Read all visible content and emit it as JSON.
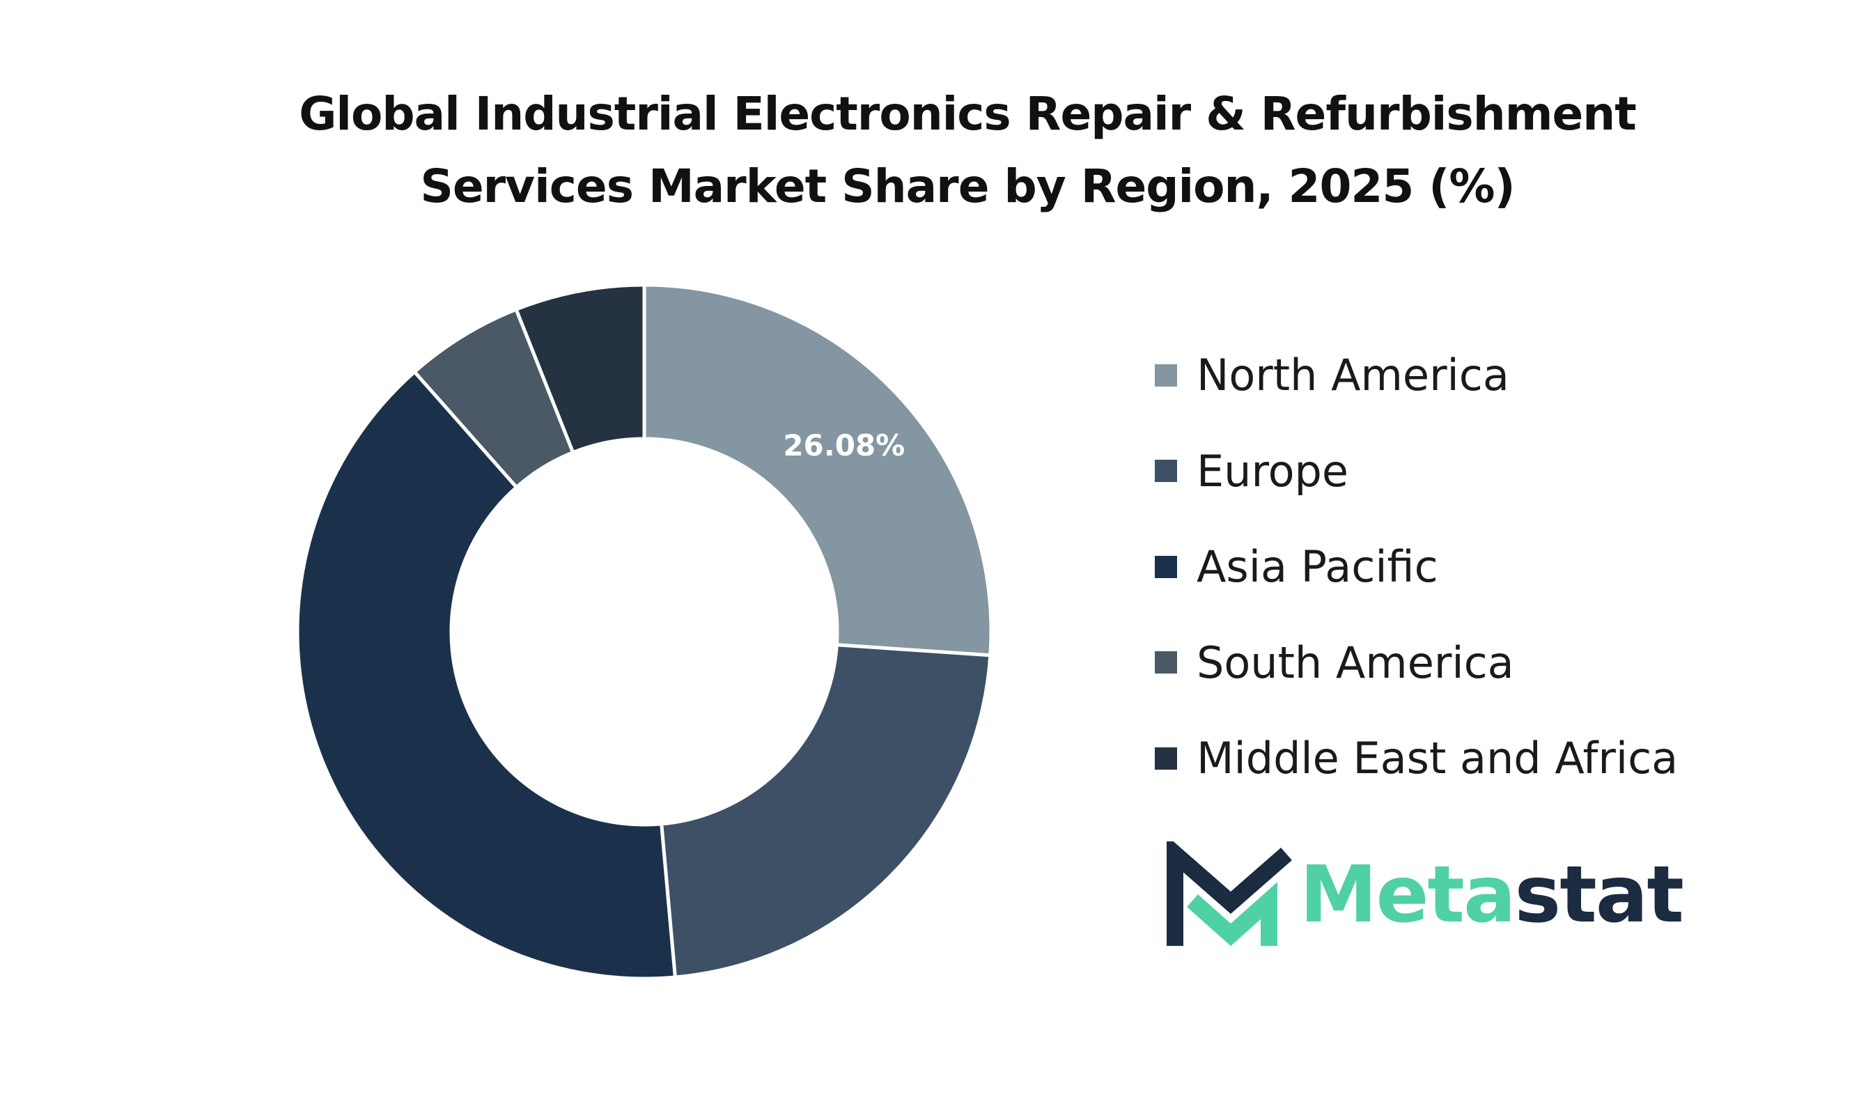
{
  "chart_data": {
    "type": "pie",
    "donut": true,
    "title_lines": [
      "Global Industrial Electronics Repair & Refurbishment",
      "Services Market Share by Region, 2025 (%)"
    ],
    "categories": [
      "North America",
      "Europe",
      "Asia Pacific",
      "South America",
      "Middle East and Africa"
    ],
    "values": [
      26.08,
      22.5,
      39.9,
      5.5,
      6.02
    ],
    "colors": [
      "#8396a1",
      "#3d5066",
      "#1b314b",
      "#4a5965",
      "#243241"
    ],
    "data_labels": [
      "26.08%",
      "",
      "",
      "",
      ""
    ],
    "legend_position": "right"
  },
  "logo": {
    "text_a": "Meta",
    "text_b": "stat",
    "color_a": "#4fd1a5",
    "color_b": "#1b2b40"
  }
}
